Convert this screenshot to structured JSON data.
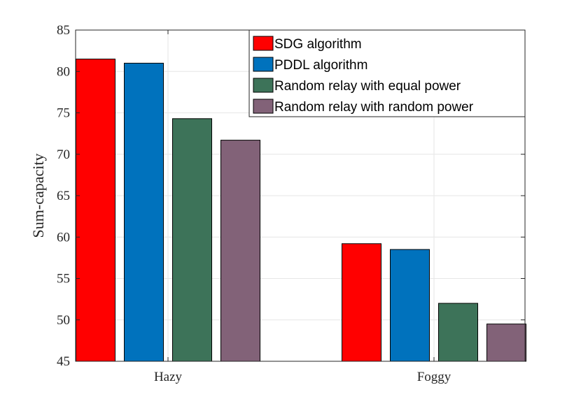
{
  "chart_data": {
    "type": "bar",
    "title": "",
    "xlabel": "",
    "ylabel": "Sum-capacity",
    "ylim": [
      45,
      85
    ],
    "yticks": [
      45,
      50,
      55,
      60,
      65,
      70,
      75,
      80,
      85
    ],
    "grid": true,
    "legend_position": "top-right",
    "categories": [
      "Hazy",
      "Foggy"
    ],
    "series": [
      {
        "name": "SDG algorithm",
        "color": "#ff0000",
        "values": [
          81.5,
          59.2
        ]
      },
      {
        "name": "PDDL algorithm",
        "color": "#0072bd",
        "values": [
          81.0,
          58.5
        ]
      },
      {
        "name": "Random relay with equal power",
        "color": "#3d7359",
        "values": [
          74.3,
          52.0
        ]
      },
      {
        "name": "Random relay with random power",
        "color": "#826278",
        "values": [
          71.7,
          49.5
        ]
      }
    ]
  }
}
